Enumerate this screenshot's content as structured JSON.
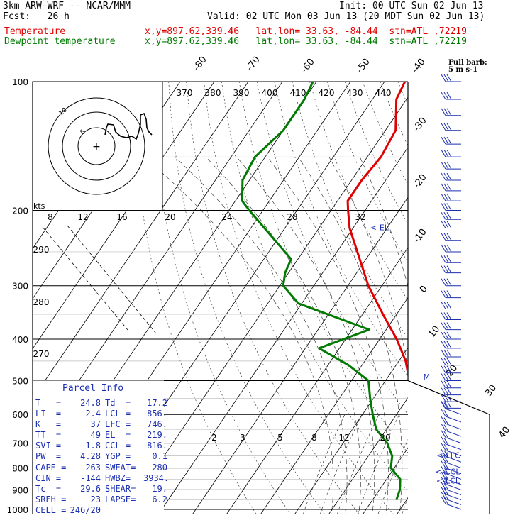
{
  "header": {
    "model": "3km ARW-WRF -- NCAR/MMM",
    "init": "Init: 00 UTC Sun 02 Jun 13",
    "fcst": "Fcst:   26 h",
    "valid": "Valid: 02 UTC Mon 03 Jun 13 (20 MDT Sun 02 Jun 13)"
  },
  "legend": {
    "temperature_label": "Temperature",
    "dewpoint_label": "Dewpoint temperature",
    "location": "x,y=897.62,339.46   lat,lon= 33.63, -84.44  stn=ATL ,72219"
  },
  "barb_legend": {
    "line1": "Full barb:",
    "line2": "5 m s-1"
  },
  "colors": {
    "temperature": "#e00000",
    "dewpoint": "#007a00",
    "annotation": "#1c2fb0",
    "grid": "#000000",
    "barb": "#1c2fb0"
  },
  "parcel_info": {
    "title": "Parcel Info",
    "rows": [
      [
        "T   =",
        "24.8",
        "Td  =",
        "17.2"
      ],
      [
        "LI  =",
        "-2.4",
        "LCL =",
        "856."
      ],
      [
        "K   =",
        "37",
        "LFC =",
        "746."
      ],
      [
        "TT  =",
        "49",
        "EL  =",
        "219."
      ],
      [
        "SVI =",
        "-1.8",
        "CCL =",
        "816."
      ],
      [
        "PW  =",
        "4.28",
        "YGP =",
        "0.1"
      ],
      [
        "CAPE =",
        "263",
        "SWEAT=",
        "280"
      ],
      [
        "CIN =",
        "-144",
        "HWBZ=",
        "3934."
      ],
      [
        "Tc  =",
        "29.6",
        "SHEAR=",
        "19."
      ],
      [
        "SREH =",
        "23",
        "LAPSE=",
        "6.2"
      ],
      [
        "CELL =",
        "246/20",
        "",
        ""
      ]
    ]
  },
  "chart_data": {
    "type": "line",
    "subtype": "skew-T log-P sounding",
    "pressure_levels": [
      100,
      200,
      300,
      400,
      500,
      600,
      700,
      800,
      900,
      1000
    ],
    "isotherm_labels": [
      -80,
      -70,
      -60,
      -50,
      -40,
      -30,
      -20,
      -10,
      0,
      10,
      20,
      30,
      40
    ],
    "theta_labels": [
      370,
      380,
      390,
      400,
      410,
      420,
      430,
      440
    ],
    "theta_lower_labels": [
      290,
      280,
      270
    ],
    "mixing_ratio_labels": [
      2,
      3,
      5,
      8,
      12,
      20
    ],
    "hodograph": {
      "speed_unit": "kts",
      "ring_labels": [
        8,
        12,
        16,
        20,
        24,
        28,
        32
      ],
      "inner_ring_labels": [
        "5",
        "10"
      ]
    },
    "markers": [
      {
        "label": "<-EL",
        "p": 219
      },
      {
        "label": "<-LFC",
        "p": 746
      },
      {
        "label": "<-CCL",
        "p": 816
      },
      {
        "label": "<-LCL",
        "p": 856
      },
      {
        "label": "M",
        "p": 490
      }
    ],
    "series": [
      {
        "name": "Temperature",
        "points": [
          [
            100,
            -64
          ],
          [
            110,
            -63
          ],
          [
            130,
            -57
          ],
          [
            150,
            -56
          ],
          [
            170,
            -57
          ],
          [
            190,
            -57
          ],
          [
            200,
            -55
          ],
          [
            220,
            -51
          ],
          [
            250,
            -44
          ],
          [
            300,
            -34
          ],
          [
            350,
            -24
          ],
          [
            400,
            -15
          ],
          [
            450,
            -8
          ],
          [
            500,
            -3
          ],
          [
            550,
            1
          ],
          [
            600,
            6
          ],
          [
            650,
            9
          ],
          [
            700,
            12
          ],
          [
            750,
            14
          ],
          [
            800,
            17
          ],
          [
            850,
            19
          ],
          [
            900,
            21
          ],
          [
            930,
            23
          ],
          [
            960,
            25
          ]
        ]
      },
      {
        "name": "Dewpoint temperature",
        "points": [
          [
            100,
            -91
          ],
          [
            110,
            -90
          ],
          [
            130,
            -90
          ],
          [
            150,
            -93
          ],
          [
            170,
            -92
          ],
          [
            190,
            -88
          ],
          [
            200,
            -84
          ],
          [
            220,
            -76
          ],
          [
            260,
            -62
          ],
          [
            280,
            -61
          ],
          [
            300,
            -59
          ],
          [
            330,
            -51
          ],
          [
            380,
            -25
          ],
          [
            420,
            -36
          ],
          [
            460,
            -24
          ],
          [
            500,
            -15
          ],
          [
            550,
            -11
          ],
          [
            600,
            -7
          ],
          [
            650,
            -3
          ],
          [
            700,
            3
          ],
          [
            750,
            7
          ],
          [
            800,
            9
          ],
          [
            850,
            14
          ],
          [
            900,
            16
          ],
          [
            950,
            17
          ]
        ]
      }
    ],
    "wind_barbs": [
      [
        100,
        270,
        15
      ],
      [
        110,
        270,
        15
      ],
      [
        120,
        270,
        15
      ],
      [
        130,
        270,
        15
      ],
      [
        140,
        270,
        15
      ],
      [
        150,
        270,
        15
      ],
      [
        160,
        270,
        15
      ],
      [
        170,
        270,
        15
      ],
      [
        180,
        270,
        15
      ],
      [
        190,
        270,
        15
      ],
      [
        200,
        270,
        15
      ],
      [
        210,
        270,
        15
      ],
      [
        220,
        270,
        15
      ],
      [
        235,
        270,
        15
      ],
      [
        250,
        270,
        15
      ],
      [
        265,
        270,
        15
      ],
      [
        280,
        270,
        15
      ],
      [
        300,
        270,
        15
      ],
      [
        320,
        270,
        15
      ],
      [
        340,
        270,
        15
      ],
      [
        360,
        270,
        15
      ],
      [
        380,
        270,
        15
      ],
      [
        400,
        270,
        15
      ],
      [
        420,
        270,
        15
      ],
      [
        440,
        270,
        15
      ],
      [
        460,
        270,
        15
      ],
      [
        480,
        270,
        15
      ],
      [
        500,
        270,
        15
      ],
      [
        520,
        270,
        15
      ],
      [
        540,
        270,
        15
      ],
      [
        560,
        270,
        15
      ],
      [
        580,
        270,
        15
      ],
      [
        600,
        300,
        10
      ],
      [
        625,
        300,
        10
      ],
      [
        650,
        300,
        10
      ],
      [
        675,
        300,
        10
      ],
      [
        700,
        300,
        10
      ],
      [
        725,
        300,
        10
      ],
      [
        750,
        300,
        10
      ],
      [
        775,
        300,
        10
      ],
      [
        800,
        300,
        10
      ],
      [
        825,
        300,
        10
      ],
      [
        850,
        300,
        10
      ],
      [
        875,
        300,
        10
      ],
      [
        900,
        300,
        10
      ],
      [
        925,
        300,
        10
      ],
      [
        950,
        300,
        10
      ],
      [
        975,
        300,
        10
      ],
      [
        1000,
        300,
        10
      ]
    ]
  }
}
